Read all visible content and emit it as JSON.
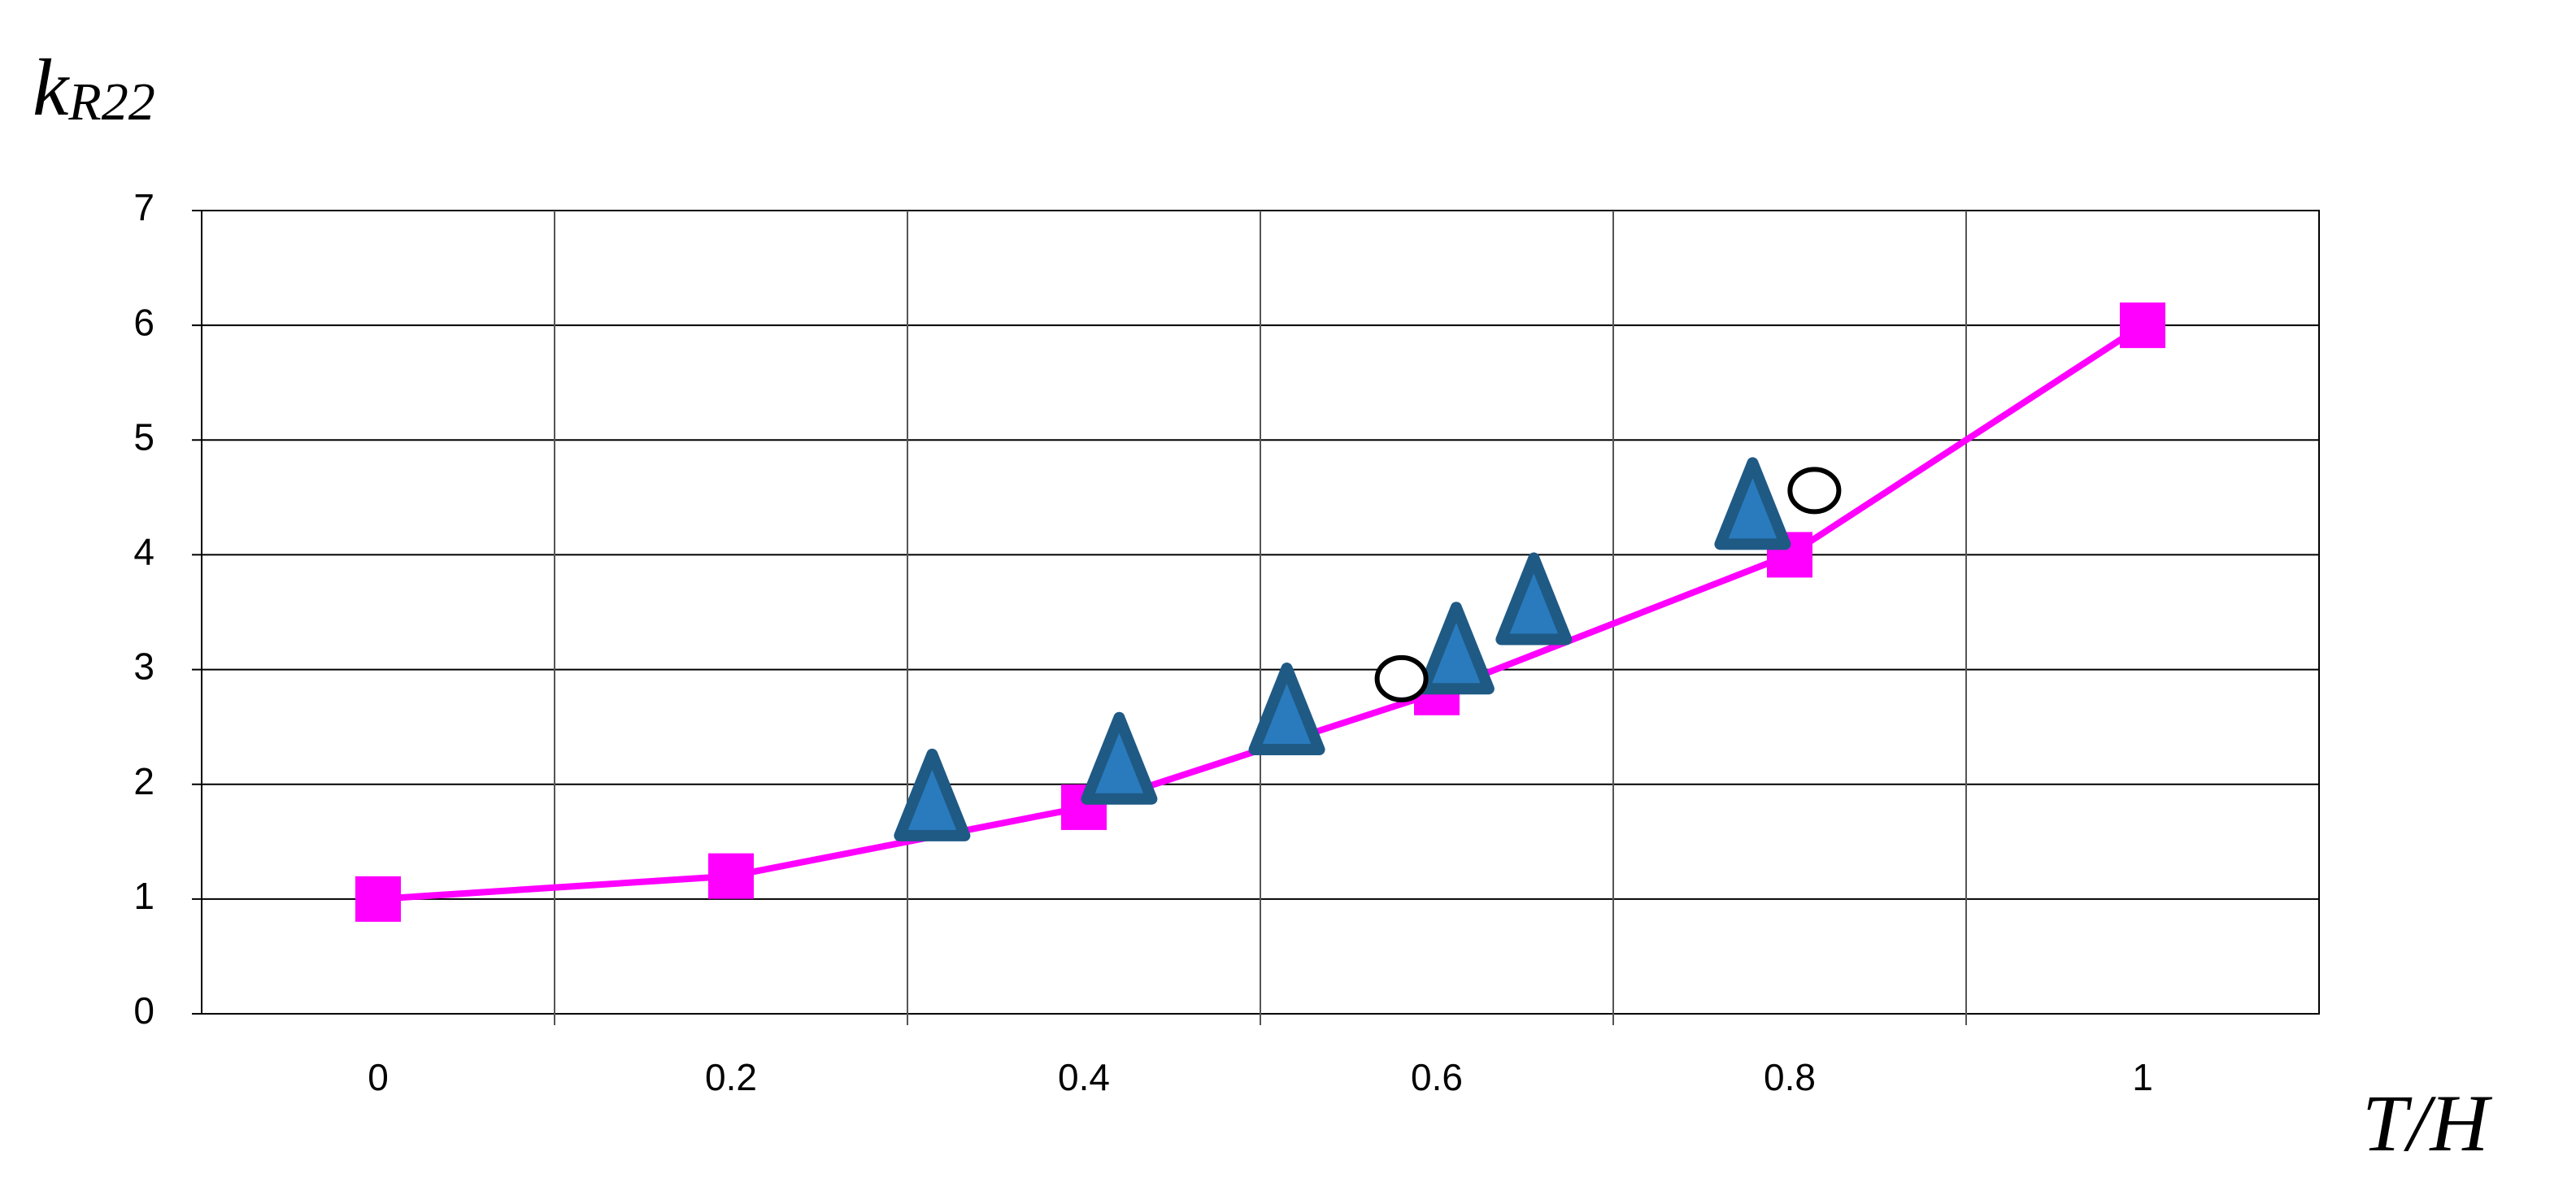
{
  "chart_data": {
    "type": "line",
    "y_label": "k",
    "y_label_sub": "R22",
    "x_label": "T/H",
    "xlim": [
      -0.1,
      1.1
    ],
    "xticks": [
      0,
      0.2,
      0.4,
      0.6,
      0.8,
      1
    ],
    "x_grid": [
      0.1,
      0.3,
      0.5,
      0.7,
      0.9
    ],
    "ylim": [
      0,
      7
    ],
    "yticks": [
      0,
      1,
      2,
      3,
      4,
      5,
      6,
      7
    ],
    "grid": true,
    "series": [
      {
        "marker": "square",
        "line": true,
        "color": "#ff00ff",
        "x": [
          0,
          0.2,
          0.4,
          0.6,
          0.8,
          1
        ],
        "values": [
          1,
          1.2,
          1.8,
          2.8,
          4,
          6
        ]
      },
      {
        "marker": "triangle",
        "line": false,
        "color": "#1f5a85",
        "x": [
          0.314,
          0.42,
          0.515,
          0.611,
          0.655,
          0.779
        ],
        "values": [
          1.85,
          2.17,
          2.6,
          3.13,
          3.56,
          4.39
        ]
      },
      {
        "marker": "circle",
        "line": false,
        "color": "#000000",
        "x": [
          0.58,
          0.814
        ],
        "values": [
          2.92,
          4.56
        ]
      }
    ]
  }
}
